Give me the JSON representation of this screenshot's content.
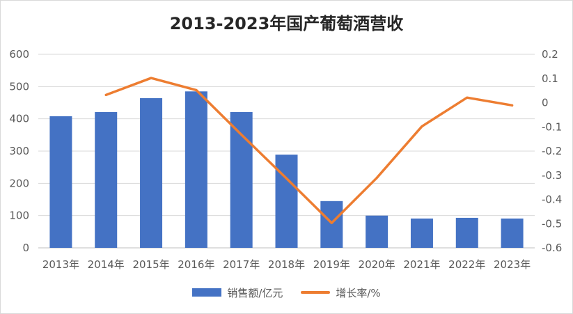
{
  "chart_data": {
    "type": "bar",
    "title": "2013-2023年国产葡萄酒营收",
    "categories": [
      "2013年",
      "2014年",
      "2015年",
      "2016年",
      "2017年",
      "2018年",
      "2019年",
      "2020年",
      "2021年",
      "2022年",
      "2023年"
    ],
    "series": [
      {
        "name": "销售额/亿元",
        "type": "bar",
        "axis": "left",
        "color": "#4472c4",
        "values": [
          408,
          421,
          464,
          485,
          421,
          289,
          145,
          100,
          91,
          93,
          91
        ]
      },
      {
        "name": "增长率/%",
        "type": "line",
        "axis": "right",
        "color": "#ed7d31",
        "values": [
          null,
          0.032,
          0.102,
          0.052,
          -0.132,
          -0.313,
          -0.497,
          -0.311,
          -0.098,
          0.021,
          -0.011
        ]
      }
    ],
    "y_left": {
      "lim": [
        0,
        600
      ],
      "ticks": [
        "0",
        "100",
        "200",
        "300",
        "400",
        "500",
        "600"
      ]
    },
    "y_right": {
      "lim": [
        -0.6,
        0.2
      ],
      "ticks": [
        "-0.6",
        "-0.5",
        "-0.4",
        "-0.3",
        "-0.2",
        "-0.1",
        "0",
        "0.1",
        "0.2"
      ]
    },
    "grid": true,
    "legend": "bottom"
  }
}
